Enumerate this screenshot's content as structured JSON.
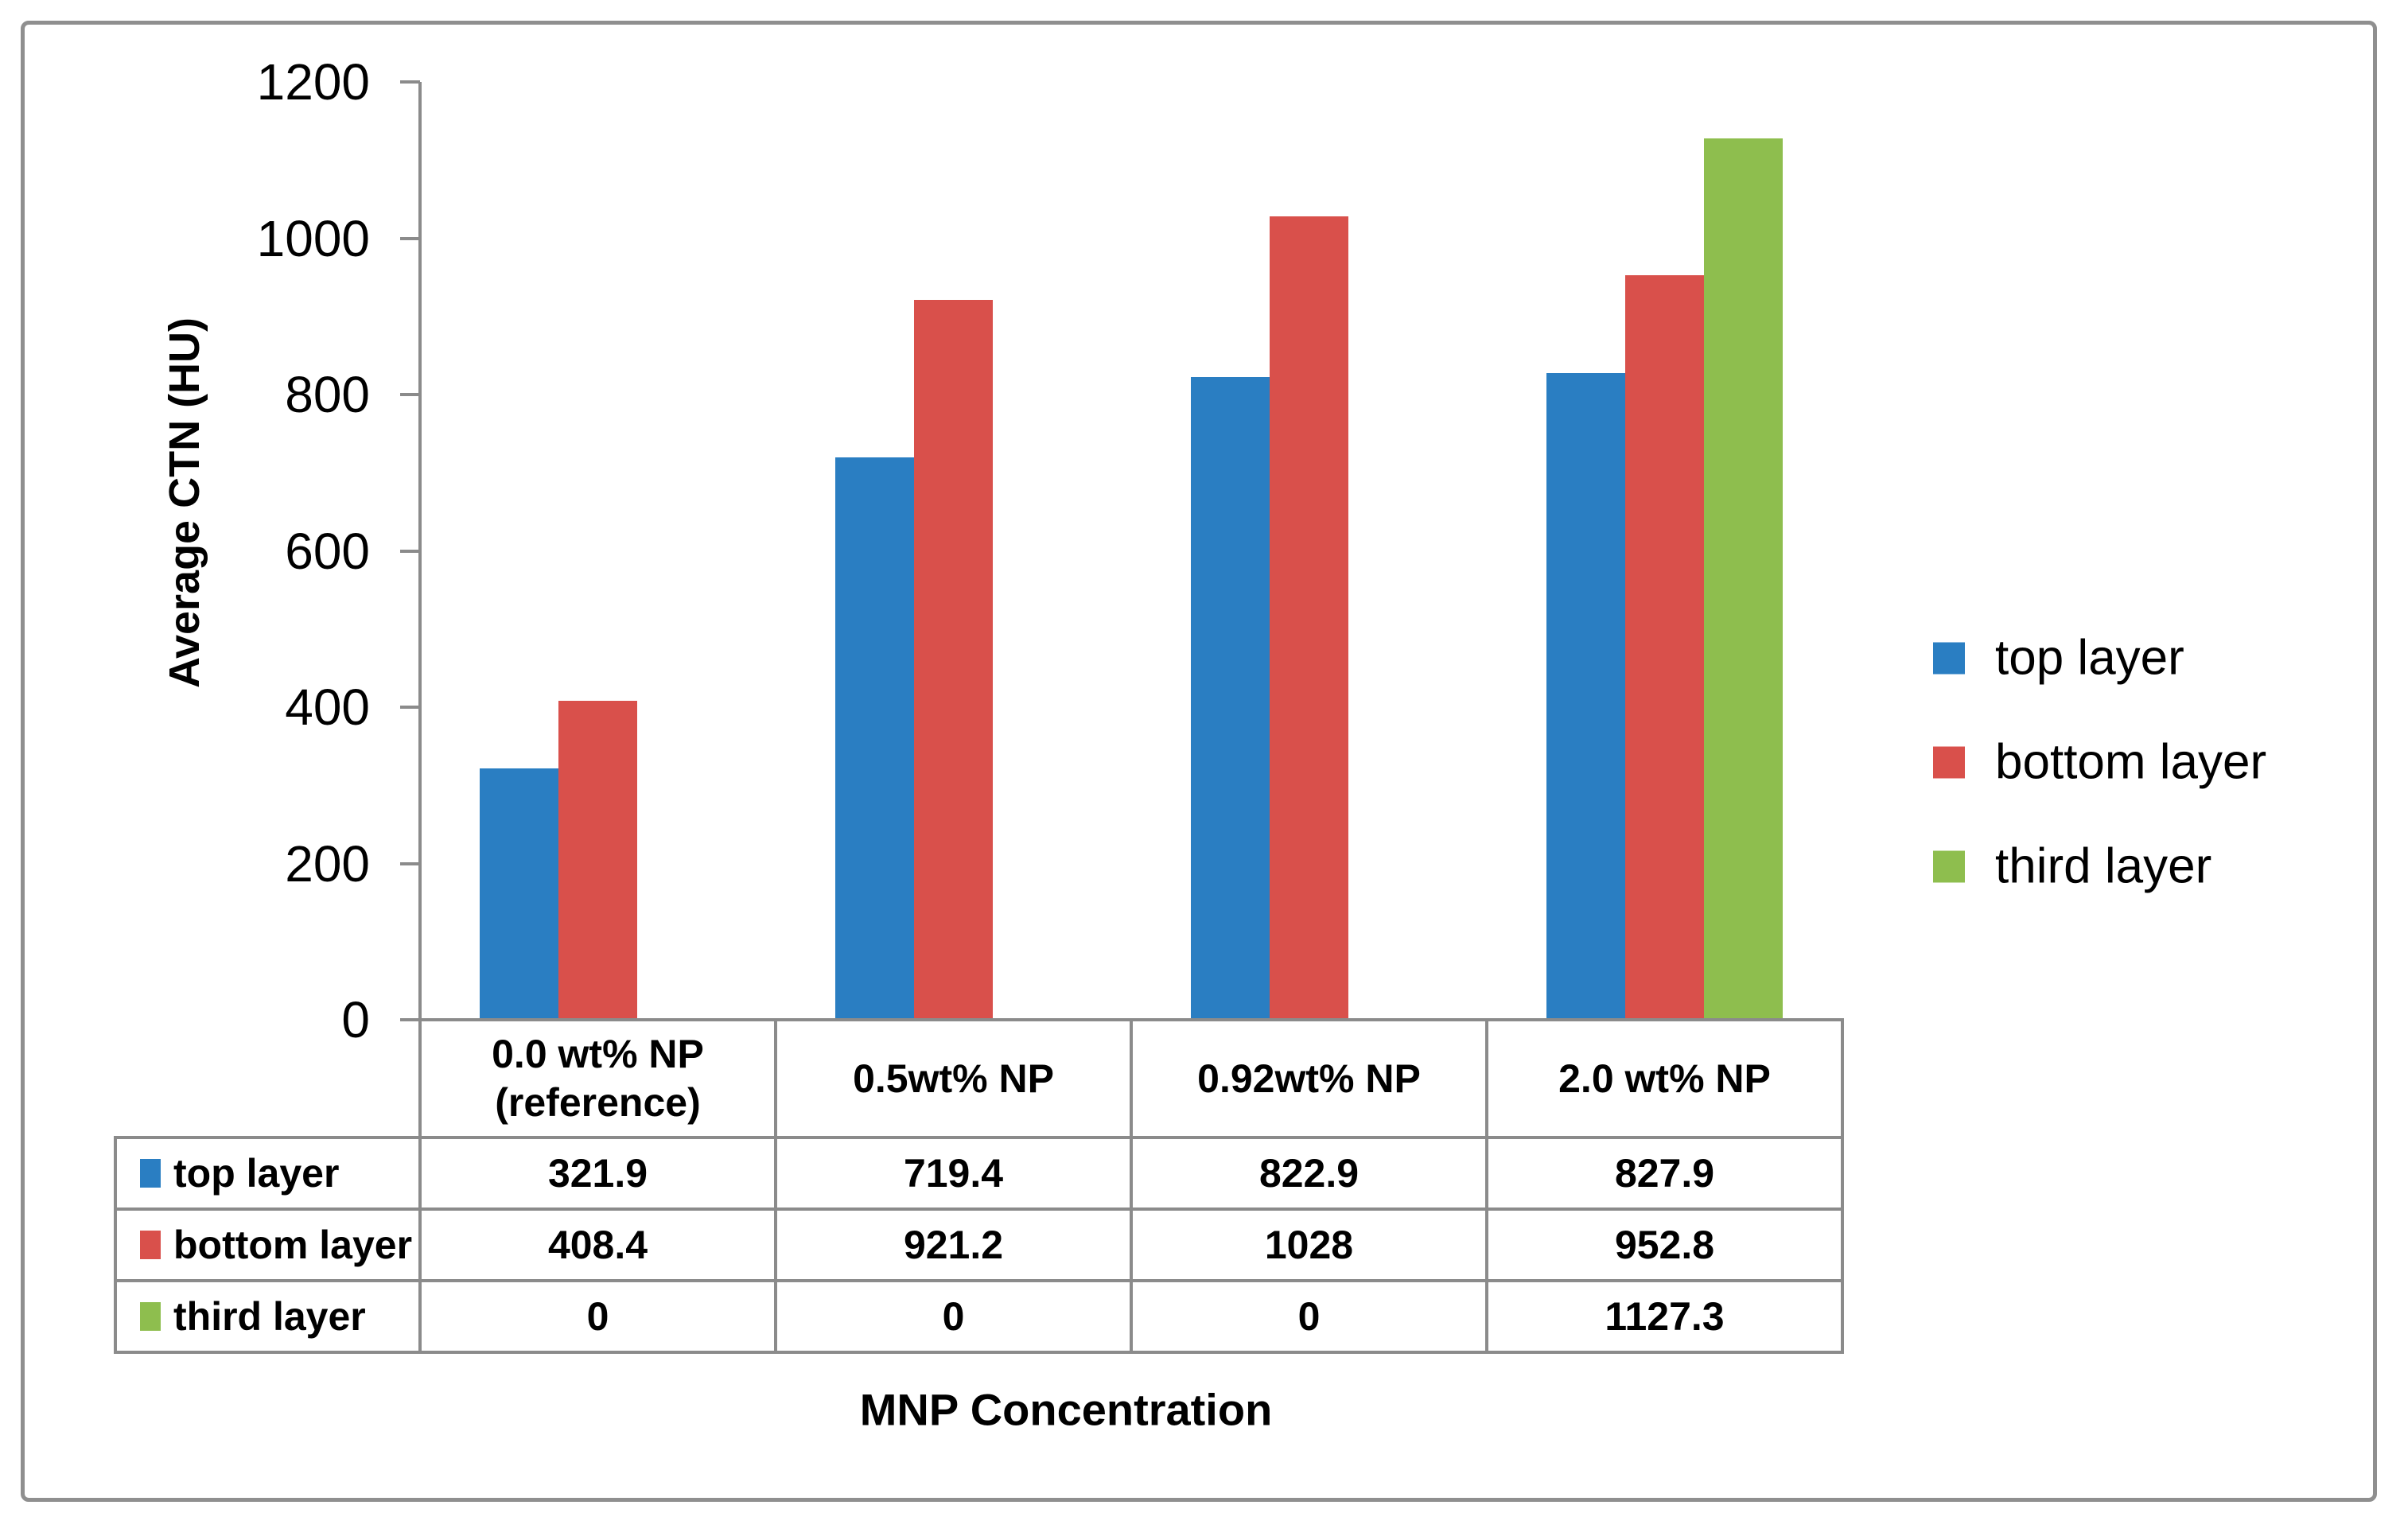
{
  "chart_data": {
    "type": "bar",
    "title": "",
    "xlabel": "MNP Concentration",
    "ylabel": "Average CTN (HU)",
    "categories": [
      "0.0 wt% NP\n(reference)",
      "0.5wt% NP",
      "0.92wt% NP",
      "2.0 wt% NP"
    ],
    "series": [
      {
        "name": "top layer",
        "color": "#2A7EC2",
        "values": [
          321.9,
          719.4,
          822.9,
          827.9
        ]
      },
      {
        "name": "bottom layer",
        "color": "#D9504B",
        "values": [
          408.4,
          921.2,
          1028,
          952.8
        ]
      },
      {
        "name": "third layer",
        "color": "#8EBE4E",
        "values": [
          0,
          0,
          0,
          1127.3
        ]
      }
    ],
    "ylim": [
      0,
      1200
    ],
    "yticks": [
      0,
      200,
      400,
      600,
      800,
      1000,
      1200
    ],
    "grid": false,
    "legend_position": "right",
    "data_table_shown": true
  },
  "colors": {
    "axis_line": "#8B8B8B",
    "frame_border": "#8F8F8F",
    "text": "#000000",
    "background": "#FFFFFF"
  }
}
